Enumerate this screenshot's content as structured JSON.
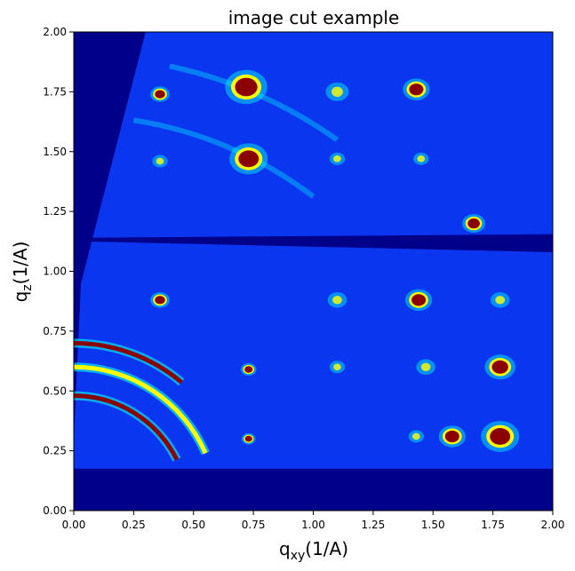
{
  "chart_data": {
    "type": "heatmap",
    "title": "image cut example",
    "xlabel": {
      "base": "q",
      "sub": "xy",
      "suffix": "(1/A)"
    },
    "ylabel": {
      "base": "q",
      "sub": "z",
      "suffix": "(1/A)"
    },
    "xlim": [
      0.0,
      2.0
    ],
    "ylim": [
      0.0,
      2.0
    ],
    "xticks": [
      "0.00",
      "0.25",
      "0.50",
      "0.75",
      "1.00",
      "1.25",
      "1.50",
      "1.75",
      "2.00"
    ],
    "yticks": [
      "0.00",
      "0.25",
      "0.50",
      "0.75",
      "1.00",
      "1.25",
      "1.50",
      "1.75",
      "2.00"
    ],
    "colormap": "jet",
    "colors": {
      "background": "#00008b",
      "detector": "#0a36f0",
      "hot": "#8b0000",
      "warm": "#ffff00",
      "mid": "#00ffff"
    },
    "gap_band_qz": [
      1.08,
      1.19
    ],
    "bottom_gap_qz": [
      0.0,
      0.175
    ],
    "spots": [
      {
        "qxy": 0.36,
        "qz": 1.74,
        "r": 0.025,
        "level": "hot"
      },
      {
        "qxy": 0.72,
        "qz": 1.77,
        "r": 0.055,
        "level": "hot"
      },
      {
        "qxy": 1.1,
        "qz": 1.75,
        "r": 0.03,
        "level": "mid"
      },
      {
        "qxy": 1.43,
        "qz": 1.76,
        "r": 0.035,
        "level": "hot"
      },
      {
        "qxy": 0.73,
        "qz": 1.47,
        "r": 0.05,
        "level": "hot"
      },
      {
        "qxy": 0.36,
        "qz": 1.46,
        "r": 0.02,
        "level": "mid"
      },
      {
        "qxy": 1.1,
        "qz": 1.47,
        "r": 0.02,
        "level": "mid"
      },
      {
        "qxy": 1.45,
        "qz": 1.47,
        "r": 0.02,
        "level": "mid"
      },
      {
        "qxy": 1.67,
        "qz": 1.2,
        "r": 0.03,
        "level": "hot"
      },
      {
        "qxy": 0.36,
        "qz": 0.88,
        "r": 0.025,
        "level": "hot"
      },
      {
        "qxy": 1.1,
        "qz": 0.88,
        "r": 0.025,
        "level": "mid"
      },
      {
        "qxy": 1.44,
        "qz": 0.88,
        "r": 0.035,
        "level": "hot"
      },
      {
        "qxy": 1.78,
        "qz": 0.88,
        "r": 0.025,
        "level": "mid"
      },
      {
        "qxy": 0.73,
        "qz": 0.59,
        "r": 0.02,
        "level": "hot"
      },
      {
        "qxy": 1.1,
        "qz": 0.6,
        "r": 0.02,
        "level": "mid"
      },
      {
        "qxy": 1.47,
        "qz": 0.6,
        "r": 0.025,
        "level": "mid"
      },
      {
        "qxy": 1.78,
        "qz": 0.6,
        "r": 0.04,
        "level": "hot"
      },
      {
        "qxy": 0.73,
        "qz": 0.3,
        "r": 0.018,
        "level": "hot"
      },
      {
        "qxy": 1.43,
        "qz": 0.31,
        "r": 0.02,
        "level": "mid"
      },
      {
        "qxy": 1.58,
        "qz": 0.31,
        "r": 0.035,
        "level": "hot"
      },
      {
        "qxy": 1.78,
        "qz": 0.31,
        "r": 0.05,
        "level": "hot"
      }
    ],
    "rings": [
      {
        "radius": 0.7,
        "qxy_range": [
          0.0,
          0.45
        ],
        "level": "hot"
      },
      {
        "radius": 0.6,
        "qxy_range": [
          0.0,
          0.55
        ],
        "level": "warm"
      },
      {
        "radius": 0.48,
        "qxy_range": [
          0.0,
          0.43
        ],
        "level": "hot"
      }
    ],
    "arcs": [
      {
        "radius": 1.9,
        "qxy_range": [
          0.4,
          1.1
        ],
        "level": "mid"
      },
      {
        "radius": 1.65,
        "qxy_range": [
          0.25,
          1.0
        ],
        "level": "mid"
      }
    ]
  }
}
